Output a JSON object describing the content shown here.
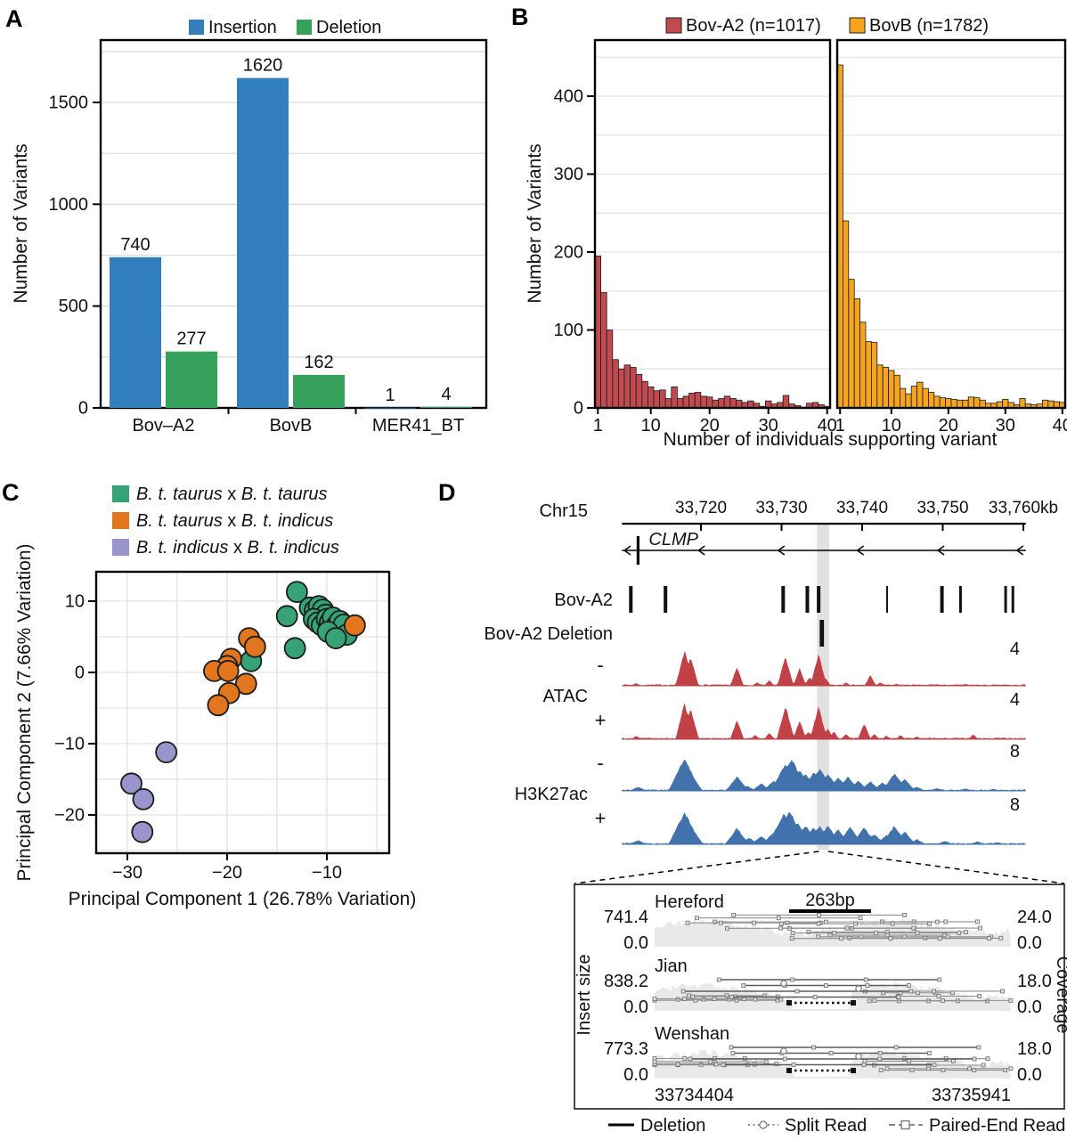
{
  "panel_letters": {
    "a": "A",
    "b": "B",
    "c": "C",
    "d": "D"
  },
  "chart_data": [
    {
      "id": "A",
      "type": "bar",
      "legend": [
        {
          "label": "Insertion",
          "color": "#337fbd"
        },
        {
          "label": "Deletion",
          "color": "#35a15b"
        }
      ],
      "categories": [
        "Bov–A2",
        "BovB",
        "MER41_BT"
      ],
      "series": [
        {
          "name": "Insertion",
          "color": "#337fbd",
          "values": [
            740,
            1620,
            1
          ]
        },
        {
          "name": "Deletion",
          "color": "#35a15b",
          "values": [
            277,
            162,
            4
          ]
        }
      ],
      "value_labels": [
        [
          "740",
          "1620",
          "1"
        ],
        [
          "277",
          "162",
          "4"
        ]
      ],
      "ylabel": "Number of Variants",
      "yticks": [
        0,
        500,
        1000,
        1500
      ],
      "ylim": [
        0,
        1806
      ],
      "grid_step": 250
    },
    {
      "id": "B",
      "type": "bar",
      "subtype": "histogram-pair",
      "xlabel": "Number of individuals supporting variant",
      "ylabel": "Number of Variants",
      "xticks": [
        1,
        10,
        20,
        30,
        40
      ],
      "yticks": [
        0,
        100,
        200,
        300,
        400
      ],
      "ylim": [
        0,
        472
      ],
      "grid_step": 50,
      "series": [
        {
          "name": "Bov-A2 (n=1017)",
          "color": "#c04a50",
          "x_start": 1,
          "values": [
            195,
            148,
            100,
            62,
            50,
            55,
            52,
            43,
            34,
            27,
            22,
            23,
            12,
            27,
            12,
            15,
            19,
            20,
            15,
            14,
            10,
            12,
            15,
            12,
            10,
            7,
            9,
            6,
            2,
            9,
            5,
            7,
            16,
            5,
            3,
            1,
            6,
            7,
            4,
            2
          ]
        },
        {
          "name": "BovB (n=1782)",
          "color": "#f5a41f",
          "x_start": 1,
          "values": [
            440,
            240,
            165,
            140,
            110,
            85,
            84,
            55,
            52,
            48,
            42,
            25,
            18,
            28,
            33,
            25,
            20,
            15,
            13,
            12,
            11,
            10,
            10,
            14,
            13,
            10,
            6,
            6,
            8,
            11,
            7,
            4,
            12,
            5,
            4,
            5,
            10,
            9,
            8,
            7
          ]
        }
      ]
    },
    {
      "id": "C",
      "type": "scatter",
      "xlabel": "Principal Component 1 (26.78% Variation)",
      "ylabel": "Principal Component 2 (7.66% Variation)",
      "xticks": [
        -30,
        -20,
        -10
      ],
      "yticks": [
        -20,
        -10,
        0,
        10
      ],
      "xlim": [
        -33.1,
        -3.7
      ],
      "ylim": [
        -25.4,
        14.1
      ],
      "grid_minor_step": 5,
      "series": [
        {
          "name_italic_1": "B. t. taurus",
          "name_sep": " x ",
          "name_italic_2": "B. t. taurus",
          "color": "#36a377",
          "points": [
            [
              -13.0,
              11.3
            ],
            [
              -14.0,
              7.9
            ],
            [
              -11.7,
              9.1
            ],
            [
              -11.2,
              8.7
            ],
            [
              -10.8,
              9.3
            ],
            [
              -10.4,
              8.8
            ],
            [
              -10.1,
              8.1
            ],
            [
              -11.3,
              7.5
            ],
            [
              -10.9,
              7.0
            ],
            [
              -10.5,
              6.6
            ],
            [
              -10.0,
              7.5
            ],
            [
              -9.7,
              7.0
            ],
            [
              -9.4,
              7.7
            ],
            [
              -9.0,
              6.6
            ],
            [
              -8.7,
              7.2
            ],
            [
              -8.3,
              6.7
            ],
            [
              -9.9,
              5.7
            ],
            [
              -8.0,
              5.3
            ],
            [
              -9.1,
              4.8
            ],
            [
              -13.2,
              3.4
            ],
            [
              -17.6,
              1.6
            ]
          ]
        },
        {
          "name_italic_1": "B. t. taurus",
          "name_sep": " x ",
          "name_italic_2": "B. t. indicus",
          "color": "#e2761f",
          "points": [
            [
              -7.2,
              6.6
            ],
            [
              -17.8,
              4.8
            ],
            [
              -17.2,
              3.6
            ],
            [
              -19.6,
              1.9
            ],
            [
              -20.0,
              0.9
            ],
            [
              -21.3,
              0.2
            ],
            [
              -19.9,
              0.2
            ],
            [
              -18.1,
              -1.6
            ],
            [
              -19.8,
              -2.9
            ],
            [
              -20.9,
              -4.6
            ]
          ]
        },
        {
          "name_italic_1": "B. t. indicus",
          "name_sep": " x ",
          "name_italic_2": "B. t. indicus",
          "color": "#9a94cc",
          "points": [
            [
              -26.1,
              -11.2
            ],
            [
              -29.6,
              -15.6
            ],
            [
              -28.4,
              -17.8
            ],
            [
              -28.5,
              -22.4
            ]
          ]
        }
      ]
    },
    {
      "id": "D",
      "type": "genome-browser",
      "chrom_label": "Chr15",
      "ruler": {
        "start_kb": 33710.2,
        "end_kb": 33760.3,
        "tick_kb": [
          33720,
          33730,
          33740,
          33750,
          33760
        ],
        "tick_labels": [
          "33,720",
          "33,730",
          "33,740",
          "33,750",
          "33,760kb"
        ]
      },
      "gene": {
        "name": "CLMP",
        "tss_kb": 33712.2,
        "strand": "-",
        "arrow_kb": [
          33710.5,
          33719.7,
          33729.6,
          33739.4,
          33749.4,
          33759.2
        ]
      },
      "bova2_row": {
        "label": "Bov-A2",
        "marks_kb": [
          33711.3,
          33715.6,
          33730.2,
          33733.2,
          33734.6,
          33743.1,
          33749.9,
          33752.2,
          33757.8,
          33758.7
        ],
        "mark_widths": [
          4,
          4,
          4,
          4,
          4,
          2,
          4,
          3,
          3,
          3
        ]
      },
      "deletion_row": {
        "label": "Bov-A2 Deletion",
        "mark_kb": 33735.0
      },
      "highlight_kb": [
        33734.4,
        33735.9
      ],
      "signal_tracks": [
        {
          "group": "ATAC",
          "strand": "-",
          "scale_label": "4",
          "color": "#c04146",
          "peaks": [
            [
              0.035,
              0.08
            ],
            [
              0.155,
              1.0
            ],
            [
              0.17,
              0.8
            ],
            [
              0.285,
              0.52
            ],
            [
              0.335,
              0.1
            ],
            [
              0.365,
              0.16
            ],
            [
              0.405,
              0.82
            ],
            [
              0.44,
              0.48
            ],
            [
              0.465,
              0.25
            ],
            [
              0.487,
              0.88
            ],
            [
              0.505,
              0.2
            ],
            [
              0.555,
              0.1
            ],
            [
              0.615,
              0.3
            ],
            [
              0.64,
              0.1
            ],
            [
              0.68,
              0.06
            ],
            [
              0.78,
              0.05
            ],
            [
              0.85,
              0.05
            ],
            [
              0.92,
              0.04
            ]
          ]
        },
        {
          "group": "ATAC",
          "strand": "+",
          "scale_label": "4",
          "color": "#c04146",
          "peaks": [
            [
              0.035,
              0.1
            ],
            [
              0.155,
              1.0
            ],
            [
              0.17,
              0.85
            ],
            [
              0.285,
              0.55
            ],
            [
              0.33,
              0.12
            ],
            [
              0.365,
              0.18
            ],
            [
              0.405,
              0.95
            ],
            [
              0.44,
              0.52
            ],
            [
              0.462,
              0.22
            ],
            [
              0.487,
              0.92
            ],
            [
              0.51,
              0.3
            ],
            [
              0.525,
              0.22
            ],
            [
              0.555,
              0.15
            ],
            [
              0.6,
              0.45
            ],
            [
              0.625,
              0.15
            ],
            [
              0.655,
              0.1
            ],
            [
              0.69,
              0.12
            ],
            [
              0.73,
              0.08
            ],
            [
              0.87,
              0.14
            ],
            [
              0.93,
              0.05
            ]
          ]
        },
        {
          "group": "H3K27ac",
          "strand": "-",
          "scale_label": "8",
          "color": "#4272ac",
          "peaks": [
            [
              0.04,
              0.12
            ],
            [
              0.155,
              0.95
            ],
            [
              0.17,
              0.5
            ],
            [
              0.285,
              0.42
            ],
            [
              0.31,
              0.15
            ],
            [
              0.345,
              0.22
            ],
            [
              0.375,
              0.3
            ],
            [
              0.405,
              0.8
            ],
            [
              0.42,
              0.95
            ],
            [
              0.44,
              0.6
            ],
            [
              0.455,
              0.5
            ],
            [
              0.475,
              0.55
            ],
            [
              0.49,
              0.65
            ],
            [
              0.51,
              0.5
            ],
            [
              0.535,
              0.4
            ],
            [
              0.56,
              0.42
            ],
            [
              0.585,
              0.3
            ],
            [
              0.615,
              0.28
            ],
            [
              0.645,
              0.25
            ],
            [
              0.675,
              0.52
            ],
            [
              0.7,
              0.35
            ],
            [
              0.73,
              0.12
            ],
            [
              0.78,
              0.08
            ],
            [
              0.85,
              0.07
            ],
            [
              0.92,
              0.06
            ]
          ]
        },
        {
          "group": "H3K27ac",
          "strand": "+",
          "scale_label": "8",
          "color": "#4272ac",
          "peaks": [
            [
              0.04,
              0.12
            ],
            [
              0.155,
              0.95
            ],
            [
              0.17,
              0.55
            ],
            [
              0.285,
              0.48
            ],
            [
              0.315,
              0.2
            ],
            [
              0.345,
              0.25
            ],
            [
              0.375,
              0.35
            ],
            [
              0.4,
              0.9
            ],
            [
              0.415,
              1.0
            ],
            [
              0.435,
              0.65
            ],
            [
              0.455,
              0.55
            ],
            [
              0.475,
              0.5
            ],
            [
              0.49,
              0.55
            ],
            [
              0.51,
              0.55
            ],
            [
              0.535,
              0.45
            ],
            [
              0.565,
              0.5
            ],
            [
              0.6,
              0.5
            ],
            [
              0.625,
              0.3
            ],
            [
              0.655,
              0.28
            ],
            [
              0.675,
              0.55
            ],
            [
              0.7,
              0.38
            ],
            [
              0.73,
              0.15
            ],
            [
              0.8,
              0.1
            ],
            [
              0.88,
              0.08
            ],
            [
              0.93,
              0.06
            ]
          ]
        }
      ],
      "group_labels": [
        "ATAC",
        "H3K27ac"
      ],
      "inset": {
        "scale_label": "263bp",
        "region_start": "33734404",
        "region_end": "33735941",
        "left_axis_label": "Insert size",
        "right_axis_label": "Coverage",
        "samples": [
          {
            "name": "Hereford",
            "insert_max": "741.4",
            "insert_min": "0.0",
            "coverage_max": "24.0",
            "coverage_min": "0.0",
            "deletion": false
          },
          {
            "name": "Jian",
            "insert_max": "838.2",
            "insert_min": "0.0",
            "coverage_max": "18.0",
            "coverage_min": "0.0",
            "deletion": true
          },
          {
            "name": "Wenshan",
            "insert_max": "773.3",
            "insert_min": "0.0",
            "coverage_max": "18.0",
            "coverage_min": "0.0",
            "deletion": true
          }
        ],
        "legend": [
          {
            "label": "Deletion",
            "symbol": "line"
          },
          {
            "label": "Split Read",
            "symbol": "dotted-circle"
          },
          {
            "label": "Paired-End Read",
            "symbol": "dashed-square"
          }
        ]
      }
    }
  ]
}
